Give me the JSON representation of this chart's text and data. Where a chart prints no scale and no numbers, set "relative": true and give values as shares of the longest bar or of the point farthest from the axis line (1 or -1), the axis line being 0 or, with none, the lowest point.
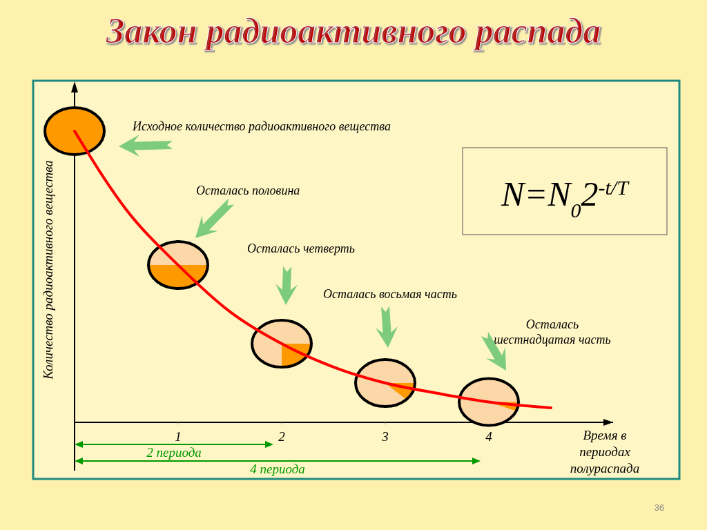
{
  "chart_data": {
    "type": "line",
    "title": "Закон радиоактивного распада",
    "xlabel": "Время в периодах полураспада",
    "ylabel": "Количество радиоактивного вещества",
    "relative": true,
    "x": [
      0,
      0.5,
      1,
      1.5,
      2,
      2.5,
      3,
      3.5,
      4,
      4.6
    ],
    "xlim": [
      0,
      5.2
    ],
    "xticks": [
      1,
      2,
      3,
      4
    ],
    "series": [
      {
        "color": "#ff0000",
        "values": [
          1,
          0.73,
          0.54,
          0.38,
          0.27,
          0.19,
          0.135,
          0.1,
          0.07,
          0.05
        ]
      }
    ],
    "grid": false,
    "annotations": [
      "Исходное количество радиоактивного вещества",
      "Осталась половина",
      "Осталась четверть",
      "Осталась восьмая часть",
      "Осталась шестнадцатая часть",
      "2 периода",
      "4 периода",
      "N=N$_{0}$2$^{-t/T}$",
      "36"
    ]
  }
}
